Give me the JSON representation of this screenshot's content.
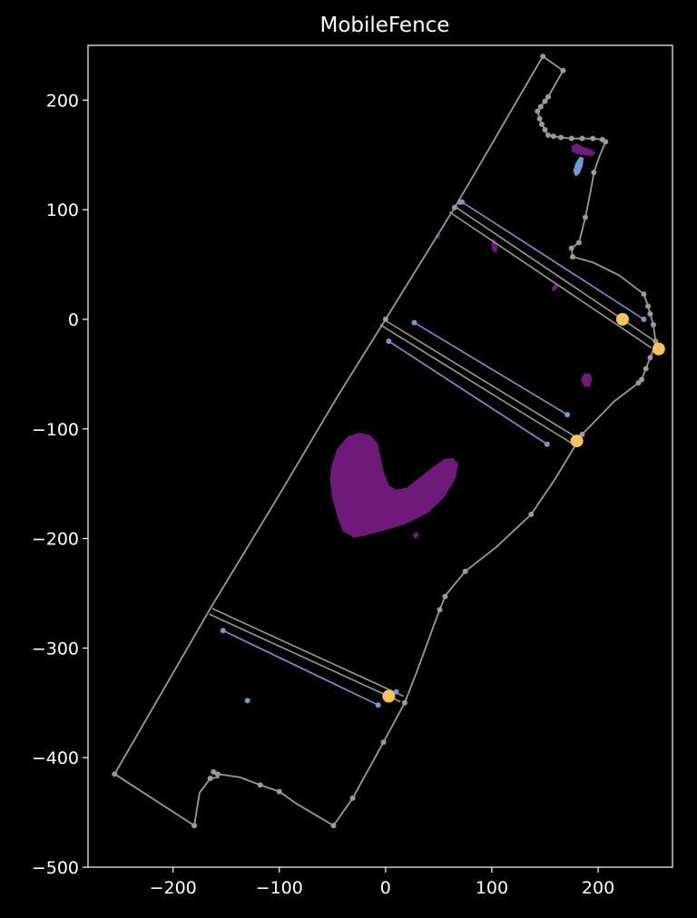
{
  "chart_data": {
    "type": "scatter",
    "title": "MobileFence",
    "xlabel": "",
    "ylabel": "",
    "xlim": [
      -280,
      270
    ],
    "ylim": [
      -500,
      250
    ],
    "xticks": [
      -200,
      -100,
      0,
      100,
      200
    ],
    "xtick_labels": [
      "−200",
      "−100",
      "0",
      "100",
      "200"
    ],
    "yticks": [
      200,
      100,
      0,
      -100,
      -200,
      -300,
      -400,
      -500
    ],
    "ytick_labels": [
      "200",
      "100",
      "0",
      "−100",
      "−200",
      "−300",
      "−400",
      "−500"
    ],
    "grid": false,
    "colors": {
      "background": "#000000",
      "axes": "#ffffff",
      "boundary": "#9a9a9a",
      "track": "#6f9ad3",
      "obstacle": "#6f1a7a",
      "station": "#f5c45a"
    },
    "boundary": [
      [
        148,
        240
      ],
      [
        167,
        227
      ],
      [
        153,
        203
      ],
      [
        150,
        199
      ],
      [
        146,
        194
      ],
      [
        143,
        190
      ],
      [
        145,
        183
      ],
      [
        147,
        178
      ],
      [
        150,
        173
      ],
      [
        153,
        168
      ],
      [
        158,
        167
      ],
      [
        165,
        166
      ],
      [
        175,
        165
      ],
      [
        185,
        165
      ],
      [
        195,
        165
      ],
      [
        204,
        164
      ],
      [
        207,
        162
      ],
      [
        201,
        148
      ],
      [
        196,
        134
      ],
      [
        193,
        117
      ],
      [
        188,
        93
      ],
      [
        182,
        70
      ],
      [
        175,
        65
      ],
      [
        176,
        57
      ],
      [
        195,
        52
      ],
      [
        220,
        40
      ],
      [
        243,
        23
      ],
      [
        247,
        12
      ],
      [
        249,
        5
      ],
      [
        252,
        -5
      ],
      [
        254,
        -20
      ],
      [
        253,
        -25
      ],
      [
        249,
        -35
      ],
      [
        245,
        -45
      ],
      [
        241,
        -55
      ],
      [
        238,
        -58
      ],
      [
        215,
        -75
      ],
      [
        200,
        -90
      ],
      [
        185,
        -105
      ],
      [
        178,
        -116
      ],
      [
        160,
        -145
      ],
      [
        137,
        -178
      ],
      [
        104,
        -208
      ],
      [
        75,
        -230
      ],
      [
        58,
        -250
      ],
      [
        56,
        -253
      ],
      [
        51,
        -265
      ],
      [
        47,
        -275
      ],
      [
        30,
        -320
      ],
      [
        18,
        -350
      ],
      [
        -2,
        -386
      ],
      [
        -31,
        -437
      ],
      [
        -49,
        -462
      ],
      [
        -84,
        -442
      ],
      [
        -100,
        -431
      ],
      [
        -118,
        -425
      ],
      [
        -137,
        -418
      ],
      [
        -158,
        -415
      ],
      [
        -162,
        -413
      ],
      [
        -157,
        -418
      ],
      [
        -165,
        -419
      ],
      [
        -175,
        -432
      ],
      [
        -180,
        -462
      ],
      [
        -255,
        -415
      ],
      [
        -165,
        -264
      ],
      [
        -100,
        -160
      ],
      [
        -45,
        -70
      ],
      [
        0,
        0
      ],
      [
        65,
        102
      ],
      [
        88,
        140
      ],
      [
        148,
        240
      ]
    ],
    "boundary_points": [
      [
        148,
        240
      ],
      [
        167,
        227
      ],
      [
        153,
        203
      ],
      [
        150,
        199
      ],
      [
        146,
        194
      ],
      [
        143,
        190
      ],
      [
        145,
        183
      ],
      [
        147,
        178
      ],
      [
        150,
        173
      ],
      [
        153,
        168
      ],
      [
        158,
        167
      ],
      [
        165,
        166
      ],
      [
        175,
        165
      ],
      [
        185,
        165
      ],
      [
        195,
        165
      ],
      [
        204,
        164
      ],
      [
        207,
        162
      ],
      [
        196,
        134
      ],
      [
        188,
        93
      ],
      [
        182,
        70
      ],
      [
        175,
        65
      ],
      [
        176,
        57
      ],
      [
        243,
        23
      ],
      [
        247,
        12
      ],
      [
        249,
        5
      ],
      [
        252,
        -5
      ],
      [
        254,
        -20
      ],
      [
        249,
        -35
      ],
      [
        245,
        -45
      ],
      [
        241,
        -55
      ],
      [
        238,
        -58
      ],
      [
        185,
        -105
      ],
      [
        137,
        -178
      ],
      [
        75,
        -230
      ],
      [
        56,
        -253
      ],
      [
        51,
        -265
      ],
      [
        18,
        -350
      ],
      [
        -2,
        -386
      ],
      [
        -31,
        -437
      ],
      [
        -49,
        -462
      ],
      [
        -100,
        -431
      ],
      [
        -118,
        -425
      ],
      [
        -158,
        -415
      ],
      [
        -162,
        -413
      ],
      [
        -165,
        -419
      ],
      [
        -180,
        -462
      ],
      [
        -255,
        -415
      ],
      [
        0,
        0
      ],
      [
        65,
        102
      ],
      [
        70,
        107
      ]
    ],
    "double_lines": [
      [
        [
          65,
          103
        ],
        [
          255,
          -21
        ]
      ],
      [
        [
          60,
          98
        ],
        [
          250,
          -26
        ]
      ],
      [
        [
          -2,
          0
        ],
        [
          180,
          -108
        ]
      ],
      [
        [
          -5,
          -5
        ],
        [
          175,
          -113
        ]
      ],
      [
        [
          -163,
          -264
        ],
        [
          17,
          -344
        ]
      ],
      [
        [
          -166,
          -269
        ],
        [
          14,
          -349
        ]
      ]
    ],
    "tracks": [
      [
        [
          72,
          107
        ],
        [
          243,
          0
        ]
      ],
      [
        [
          27,
          -3
        ],
        [
          171,
          -87
        ]
      ],
      [
        [
          3,
          -20
        ],
        [
          152,
          -114
        ]
      ],
      [
        [
          -153,
          -284
        ],
        [
          -7,
          -352
        ]
      ]
    ],
    "track_points": [
      [
        72,
        107
      ],
      [
        243,
        0
      ],
      [
        27,
        -3
      ],
      [
        171,
        -87
      ],
      [
        3,
        -20
      ],
      [
        152,
        -114
      ],
      [
        -153,
        -284
      ],
      [
        -7,
        -352
      ],
      [
        -130,
        -348
      ],
      [
        10,
        -340
      ]
    ],
    "stations": [
      [
        223,
        0
      ],
      [
        257,
        -27
      ],
      [
        180,
        -111
      ],
      [
        3,
        -344
      ]
    ],
    "obstacles": [
      [
        [
          -50,
          -132
        ],
        [
          -45,
          -118
        ],
        [
          -35,
          -107
        ],
        [
          -25,
          -104
        ],
        [
          -15,
          -106
        ],
        [
          -8,
          -113
        ],
        [
          -5,
          -126
        ],
        [
          -2,
          -140
        ],
        [
          3,
          -152
        ],
        [
          10,
          -156
        ],
        [
          20,
          -154
        ],
        [
          32,
          -145
        ],
        [
          45,
          -135
        ],
        [
          55,
          -128
        ],
        [
          63,
          -127
        ],
        [
          68,
          -132
        ],
        [
          65,
          -146
        ],
        [
          55,
          -162
        ],
        [
          40,
          -176
        ],
        [
          20,
          -186
        ],
        [
          0,
          -192
        ],
        [
          -20,
          -197
        ],
        [
          -30,
          -199
        ],
        [
          -40,
          -193
        ],
        [
          -45,
          -180
        ],
        [
          -50,
          -162
        ],
        [
          -52,
          -145
        ]
      ],
      [
        [
          100,
          68
        ],
        [
          101,
          73
        ],
        [
          103,
          71
        ],
        [
          105,
          66
        ],
        [
          104,
          61
        ],
        [
          101,
          63
        ]
      ],
      [
        [
          48,
          77
        ],
        [
          51,
          77
        ],
        [
          50,
          74
        ],
        [
          47,
          74
        ]
      ],
      [
        [
          157,
          29
        ],
        [
          160,
          32
        ],
        [
          162,
          30
        ],
        [
          160,
          27
        ],
        [
          157,
          26
        ]
      ],
      [
        [
          184,
          -55
        ],
        [
          187,
          -50
        ],
        [
          192,
          -50
        ],
        [
          194,
          -55
        ],
        [
          192,
          -61
        ],
        [
          187,
          -61
        ]
      ],
      [
        [
          26,
          -197
        ],
        [
          29,
          -194
        ],
        [
          31,
          -197
        ],
        [
          28,
          -200
        ]
      ],
      [
        [
          175,
          158
        ],
        [
          180,
          160
        ],
        [
          186,
          157
        ],
        [
          193,
          155
        ],
        [
          197,
          152
        ],
        [
          194,
          149
        ],
        [
          188,
          150
        ],
        [
          181,
          151
        ],
        [
          176,
          153
        ]
      ]
    ],
    "track_blobs": [
      [
        [
          177,
          135
        ],
        [
          179,
          142
        ],
        [
          183,
          148
        ],
        [
          186,
          147
        ],
        [
          185,
          140
        ],
        [
          182,
          133
        ],
        [
          179,
          131
        ]
      ]
    ]
  }
}
